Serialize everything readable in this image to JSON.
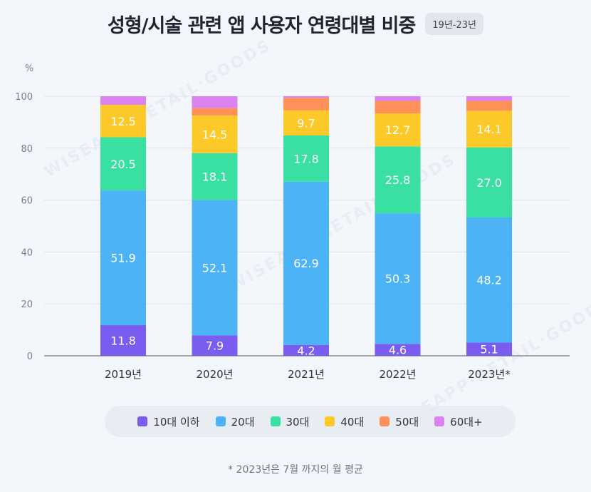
{
  "header": {
    "title": "성형/시술 관련 앱 사용자 연령대별 비중",
    "period_badge": "19년-23년"
  },
  "watermark": "WISEAPP·RETAIL·GOODS",
  "footnote": "* 2023년은 7월 까지의 월 평균",
  "chart_data": {
    "type": "bar",
    "stacked": true,
    "title": "성형/시술 관련 앱 사용자 연령대별 비중",
    "ylabel": "%",
    "ylim": [
      0,
      100
    ],
    "yticks": [
      0,
      20,
      40,
      60,
      80,
      100
    ],
    "grid": true,
    "legend_position": "bottom",
    "categories": [
      "2019년",
      "2020년",
      "2021년",
      "2022년",
      "2023년*"
    ],
    "series": [
      {
        "name": "10대 이하",
        "color": "#7a5cf0",
        "values": [
          11.8,
          7.9,
          4.2,
          4.6,
          5.1
        ],
        "labels": [
          "11.8",
          "7.9",
          "4.2",
          "4.6",
          "5.1"
        ]
      },
      {
        "name": "20대",
        "color": "#4db3f7",
        "values": [
          51.9,
          52.1,
          62.9,
          50.3,
          48.2
        ],
        "labels": [
          "51.9",
          "52.1",
          "62.9",
          "50.3",
          "48.2"
        ]
      },
      {
        "name": "30대",
        "color": "#39e0a2",
        "values": [
          20.5,
          18.1,
          17.8,
          25.8,
          27.0
        ],
        "labels": [
          "20.5",
          "18.1",
          "17.8",
          "25.8",
          "27.0"
        ]
      },
      {
        "name": "40대",
        "color": "#fdc928",
        "values": [
          12.5,
          14.5,
          9.7,
          12.7,
          14.1
        ],
        "labels": [
          "12.5",
          "14.5",
          "9.7",
          "12.7",
          "14.1"
        ]
      },
      {
        "name": "50대",
        "color": "#ff9057",
        "values": [
          0.0,
          2.9,
          4.8,
          4.8,
          3.8
        ],
        "labels": null
      },
      {
        "name": "60대+",
        "color": "#d982f0",
        "values": [
          3.3,
          4.5,
          0.6,
          1.8,
          1.8
        ],
        "labels": null
      }
    ]
  }
}
